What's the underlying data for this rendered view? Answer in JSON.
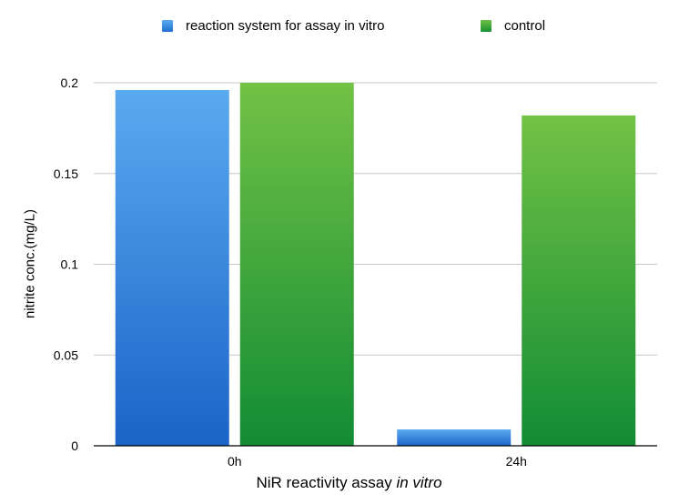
{
  "chart_data": {
    "type": "bar",
    "categories": [
      "0h",
      "24h"
    ],
    "series": [
      {
        "name": "reaction system for assay in vitro",
        "values": [
          0.196,
          0.009
        ]
      },
      {
        "name": "control",
        "values": [
          0.2,
          0.182
        ]
      }
    ],
    "xlabel": "NiR reactivity assay",
    "xlabel_italic": "in vitro",
    "ylabel": "nitrite conc.(mg/L)",
    "yticks": [
      "0",
      "0.05",
      "0.1",
      "0.15",
      "0.2"
    ],
    "ylim": [
      0,
      0.2
    ],
    "grid": true,
    "legend_position": "top",
    "colors": {
      "series_0_top": "#5aaaf0",
      "series_0_bottom": "#1a64c8",
      "series_1_top": "#72c245",
      "series_1_bottom": "#128c34",
      "grid": "#c8c8c8",
      "axis": "#000000"
    }
  }
}
